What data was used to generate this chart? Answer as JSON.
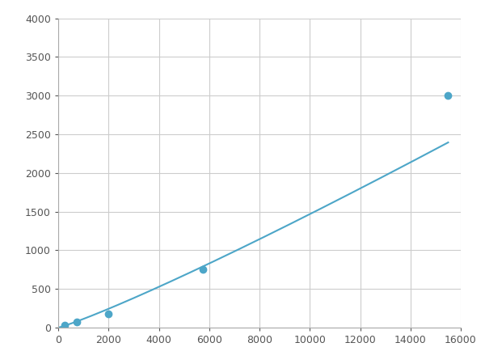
{
  "x": [
    250,
    750,
    2000,
    5750,
    15500
  ],
  "y": [
    30,
    75,
    175,
    750,
    3000
  ],
  "line_color": "#4da6c8",
  "marker_color": "#4da6c8",
  "marker_size": 6,
  "marker_style": "o",
  "line_width": 1.5,
  "xlim": [
    0,
    16000
  ],
  "ylim": [
    0,
    4000
  ],
  "xticks": [
    0,
    2000,
    4000,
    6000,
    8000,
    10000,
    12000,
    14000,
    16000
  ],
  "yticks": [
    0,
    500,
    1000,
    1500,
    2000,
    2500,
    3000,
    3500,
    4000
  ],
  "grid_color": "#cccccc",
  "background_color": "#ffffff",
  "figsize": [
    6.0,
    4.5
  ],
  "dpi": 100
}
